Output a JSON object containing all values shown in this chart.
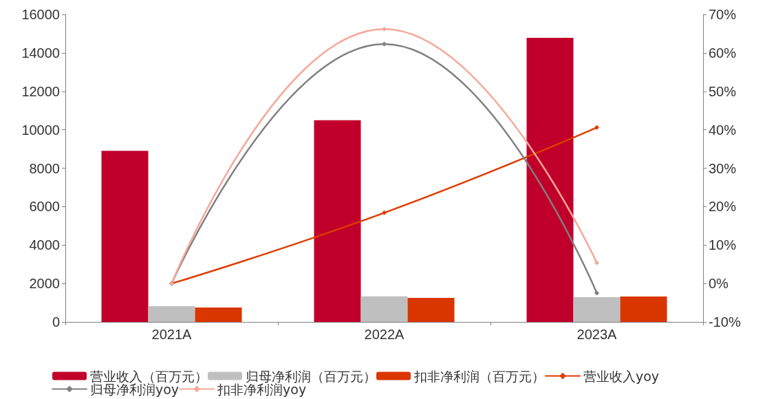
{
  "chart_data": {
    "type": "bar",
    "categories": [
      "2021A",
      "2022A",
      "2023A"
    ],
    "series": [
      {
        "name": "营业收入（百万元）",
        "color": "#c0002b",
        "values": [
          8900,
          10500,
          14780
        ]
      },
      {
        "name": "归母净利润（百万元）",
        "color": "#bfbfbf",
        "values": [
          820,
          1330,
          1290
        ]
      },
      {
        "name": "扣非净利润（百万元）",
        "color": "#d93600",
        "values": [
          750,
          1250,
          1320
        ]
      },
      {
        "name": "营业收入yoy",
        "type": "line",
        "axis": "y2",
        "color": "#e03c00",
        "values": [
          0,
          18.4,
          40.6
        ]
      },
      {
        "name": "归母净利润yoy",
        "type": "line",
        "axis": "y2",
        "color": "#7f7f7f",
        "values": [
          0,
          62.3,
          -2.5
        ]
      },
      {
        "name": "扣非净利润yoy",
        "type": "line",
        "axis": "y2",
        "color": "#f5a899",
        "values": [
          0,
          66.2,
          5.4
        ]
      }
    ],
    "ylim": [
      0,
      16000
    ],
    "yticks": [
      0,
      2000,
      4000,
      6000,
      8000,
      10000,
      12000,
      14000,
      16000
    ],
    "y2lim": [
      -10,
      70
    ],
    "y2ticks": [
      {
        "value": -10,
        "label": "-10%"
      },
      {
        "value": 0,
        "label": "0%"
      },
      {
        "value": 10,
        "label": "10%"
      },
      {
        "value": 20,
        "label": "20%"
      },
      {
        "value": 30,
        "label": "30%"
      },
      {
        "value": 40,
        "label": "40%"
      },
      {
        "value": 50,
        "label": "50%"
      },
      {
        "value": 60,
        "label": "60%"
      },
      {
        "value": 70,
        "label": "70%"
      }
    ],
    "grid": false,
    "legend": "bottom",
    "marker": "diamond",
    "line_style": "solid"
  }
}
